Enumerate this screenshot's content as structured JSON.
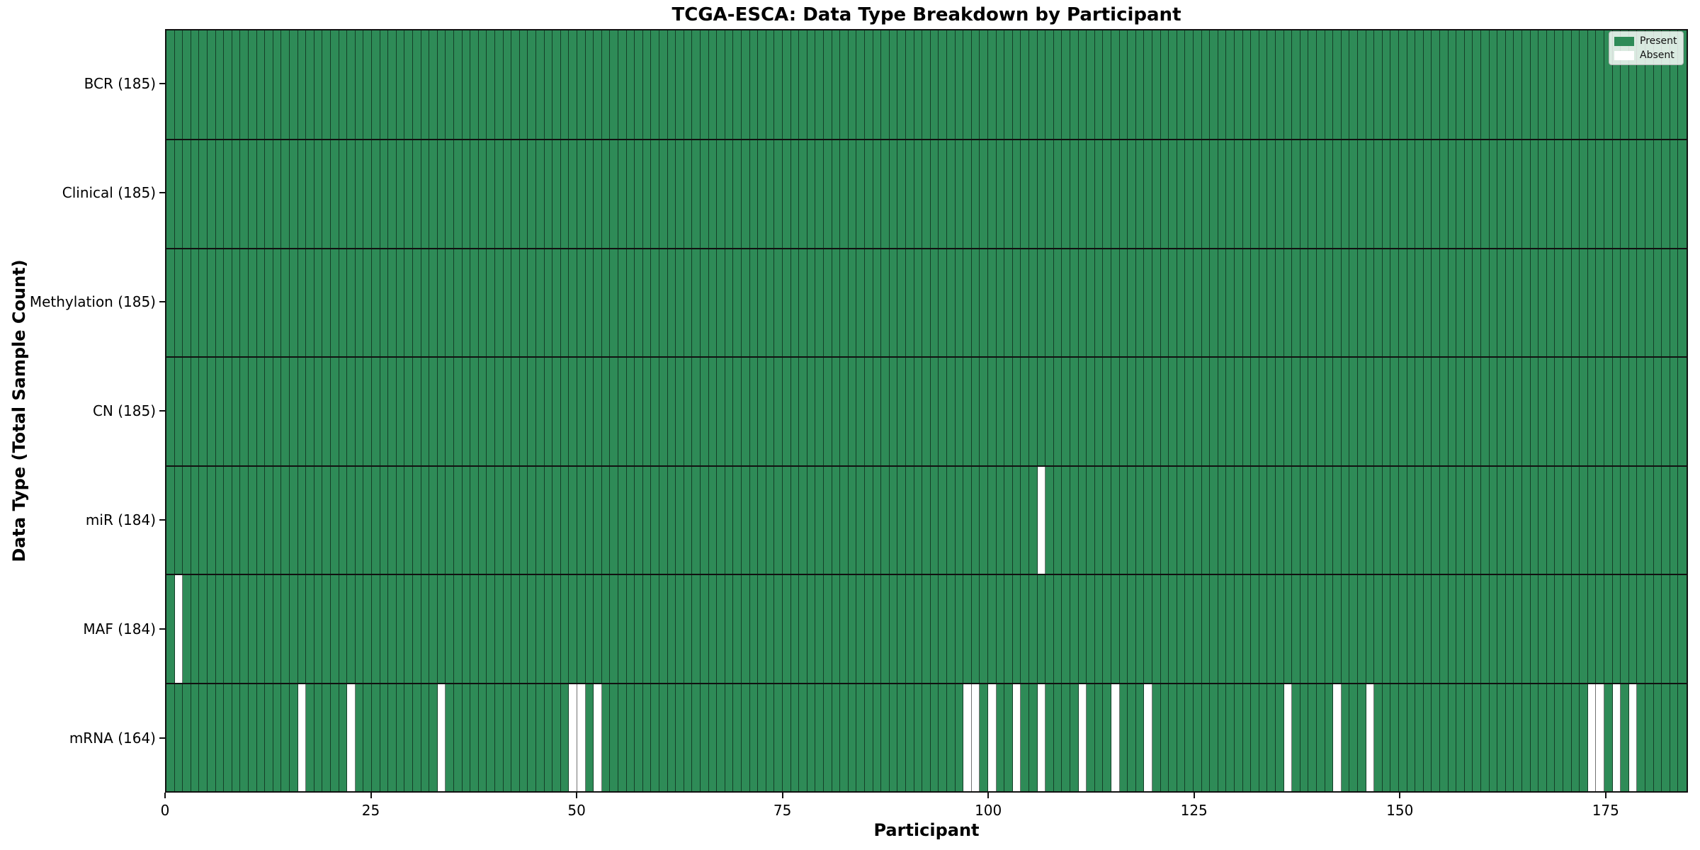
{
  "chart_data": {
    "type": "heatmap",
    "title": "TCGA-ESCA: Data Type Breakdown by Participant",
    "xlabel": "Participant",
    "ylabel": "Data Type (Total Sample Count)",
    "n_participants": 185,
    "x_ticks": [
      0,
      25,
      50,
      75,
      100,
      125,
      150,
      175
    ],
    "x_range": [
      0,
      185
    ],
    "grid": "per-cell vertical gridlines, black row separators",
    "rows": [
      {
        "label": "BCR (185)",
        "data_type": "BCR",
        "present_count": 185,
        "absent_participants": []
      },
      {
        "label": "Clinical (185)",
        "data_type": "Clinical",
        "present_count": 185,
        "absent_participants": []
      },
      {
        "label": "Methylation (185)",
        "data_type": "Methylation",
        "present_count": 185,
        "absent_participants": []
      },
      {
        "label": "CN (185)",
        "data_type": "CN",
        "present_count": 185,
        "absent_participants": []
      },
      {
        "label": "miR (184)",
        "data_type": "miR",
        "present_count": 184,
        "absent_participants": [
          106
        ]
      },
      {
        "label": "MAF (184)",
        "data_type": "MAF",
        "present_count": 184,
        "absent_participants": [
          1
        ]
      },
      {
        "label": "mRNA (164)",
        "data_type": "mRNA",
        "present_count": 164,
        "absent_participants": [
          16,
          22,
          33,
          49,
          50,
          52,
          97,
          98,
          100,
          103,
          106,
          111,
          115,
          119,
          136,
          142,
          146,
          173,
          174,
          176,
          178
        ]
      }
    ],
    "legend": {
      "position": "upper-right",
      "entries": [
        {
          "label": "Present",
          "color": "#2e8b57"
        },
        {
          "label": "Absent",
          "color": "#ffffff"
        }
      ]
    },
    "colors": {
      "present": "#2e8b57",
      "absent": "#ffffff",
      "cell_gridline": "rgba(0,0,0,0.55)",
      "row_separator": "#111111",
      "spine": "#111111",
      "text": "#000000",
      "legend_background": "rgba(255,255,255,0.82)",
      "legend_border": "#b5b5b5"
    }
  }
}
